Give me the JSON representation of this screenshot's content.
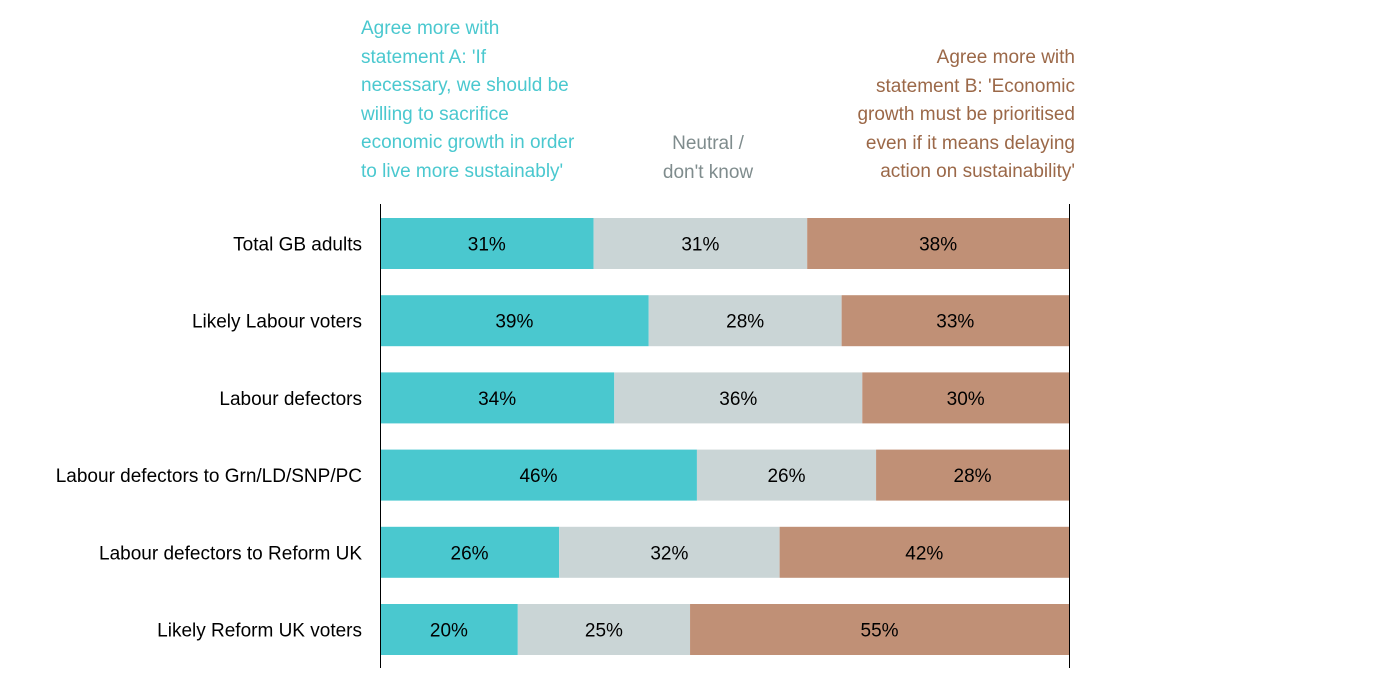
{
  "chart_data": {
    "type": "bar",
    "orientation": "horizontal",
    "stacked": true,
    "categories": [
      "Total GB adults",
      "Likely Labour voters",
      "Labour defectors",
      "Labour defectors to Grn/LD/SNP/PC",
      "Labour defectors to Reform UK",
      "Likely Reform UK voters"
    ],
    "series": [
      {
        "name": "Agree more with statement A: 'If necessary, we should be willing to sacrifice economic growth in order to live more sustainably'",
        "values": [
          31,
          39,
          34,
          46,
          26,
          20
        ],
        "labels": [
          "31%",
          "39%",
          "34%",
          "46%",
          "26%",
          "20%"
        ],
        "color": "#4ac8cf"
      },
      {
        "name": "Neutral / don't know",
        "values": [
          31,
          28,
          36,
          26,
          32,
          25
        ],
        "labels": [
          "31%",
          "28%",
          "36%",
          "26%",
          "32%",
          "25%"
        ],
        "color": "#cad5d6"
      },
      {
        "name": "Agree more with statement B: 'Economic growth must be prioritised even if it means delaying action on sustainability'",
        "values": [
          38,
          33,
          30,
          28,
          42,
          55
        ],
        "labels": [
          "38%",
          "33%",
          "30%",
          "28%",
          "42%",
          "55%"
        ],
        "color": "#c09076"
      }
    ],
    "xlim": [
      0,
      100
    ],
    "grid": false
  },
  "legend": {
    "a_lines": [
      "Agree more with",
      "statement A: 'If",
      "necessary, we should be",
      "willing to sacrifice",
      "economic growth in order",
      "to live more sustainably'"
    ],
    "neutral_lines": [
      "Neutral /",
      "don't know"
    ],
    "b_lines": [
      "Agree more with",
      "statement B: 'Economic",
      "growth must be prioritised",
      "even if it means delaying",
      "action on sustainability'"
    ]
  }
}
